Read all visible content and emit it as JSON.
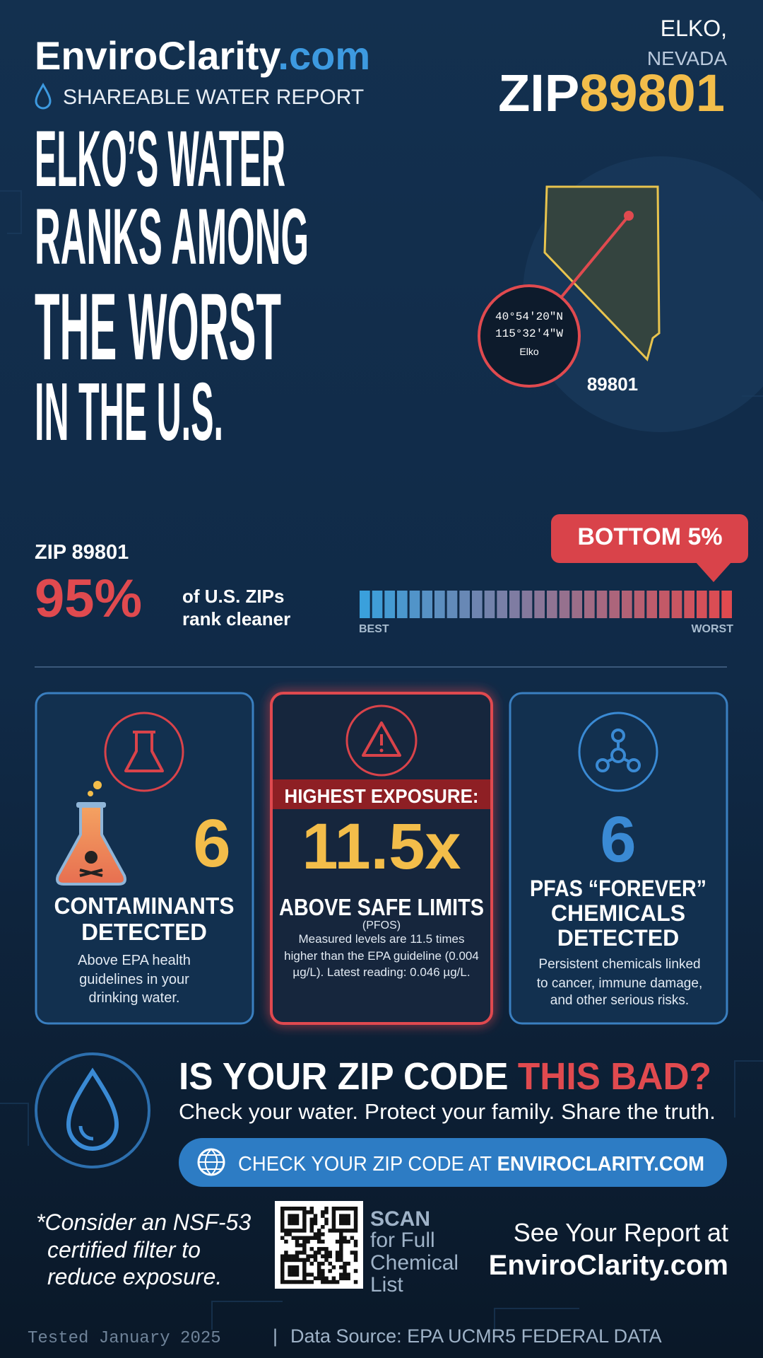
{
  "header": {
    "brand": "EnviroClarity",
    "brand_suffix": ".com",
    "subtitle": "SHAREABLE WATER REPORT",
    "city": "ELKO,",
    "state": "NEVADA",
    "zip_label": "ZIP",
    "zip": "89801"
  },
  "headline": [
    "ELKO’S WATER",
    "RANKS AMONG",
    "THE WORST",
    "IN THE U.S."
  ],
  "map": {
    "latitude": "40°54′20″N",
    "longitude": "115°32′4″W",
    "place": "Elko",
    "zip": "89801"
  },
  "ranking": {
    "zip_label": "ZIP 89801",
    "percent": "95%",
    "caption": [
      "of U.S. ZIPs",
      "rank cleaner"
    ],
    "badge": "BOTTOM 5%",
    "scale_min": "BEST",
    "scale_max": "WORST"
  },
  "cards": [
    {
      "value": "6",
      "title": [
        "CONTAMINANTS",
        "DETECTED"
      ],
      "description": [
        "Above EPA health",
        "guidelines in your",
        "drinking water."
      ]
    },
    {
      "banner": "HIGHEST EXPOSURE:",
      "value": "11.5x",
      "title": [
        "ABOVE SAFE LIMITS"
      ],
      "note": "(PFOS)",
      "description": [
        "Measured levels are 11.5 times",
        "higher than the EPA guideline (0.004",
        "µg/L). Latest reading: 0.046 µg/L."
      ]
    },
    {
      "value": "6",
      "title": [
        "PFAS “FOREVER”",
        "CHEMICALS",
        "DETECTED"
      ],
      "description": [
        "Persistent chemicals linked",
        "to cancer, immune damage,",
        "and other serious risks."
      ]
    }
  ],
  "cta": {
    "question": "IS YOUR ZIP CODE",
    "question_highlight": "THIS BAD?",
    "tagline": "Check your water. Protect your family. Share the truth.",
    "button": "CHECK YOUR ZIP CODE AT",
    "button_highlight": "ENVIROCLARITY.COM"
  },
  "footer": {
    "advice": [
      "*Consider an NSF-53",
      "certified filter to",
      "reduce exposure."
    ],
    "scan": [
      "SCAN",
      "for Full",
      "Chemical",
      "List"
    ],
    "report": [
      "See Your Report at",
      "EnviroClarity.com"
    ],
    "tested": "Tested January 2025",
    "separator": "|",
    "source": "Data Source: EPA UCMR5 FEDERAL DATA"
  }
}
